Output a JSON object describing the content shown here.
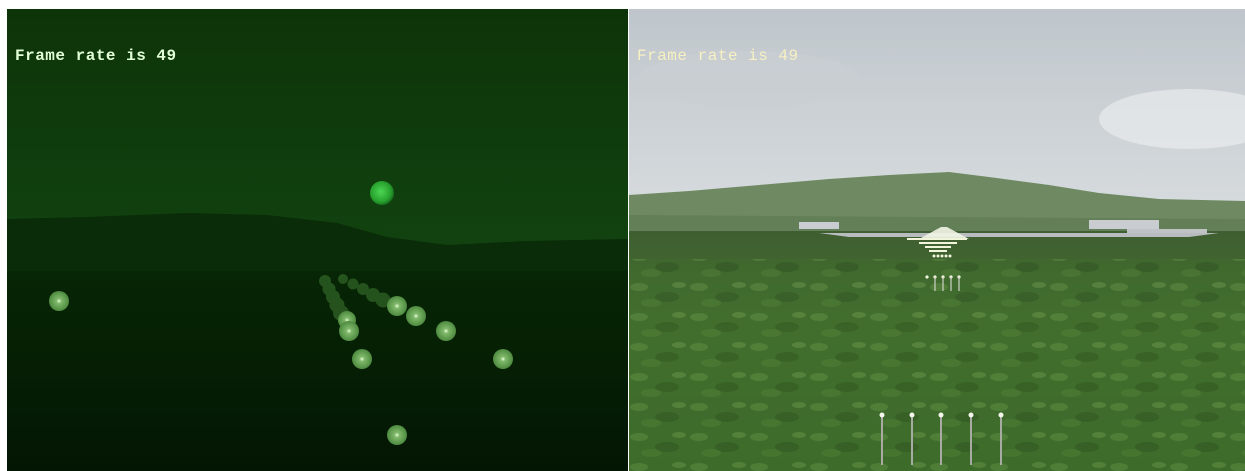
{
  "night_view": {
    "fps_text": "Frame rate is 49",
    "colors": {
      "sky": "#0f3a0c",
      "ground": "#041a03",
      "moon": "#2fa836",
      "light": "#6fa85e"
    }
  },
  "day_view": {
    "fps_text": "Frame rate is 49",
    "colors": {
      "sky": "#d6dadd",
      "hills": "#6e8a62",
      "ground": "#3f6a2c",
      "runway_light": "#f1f5dc"
    }
  }
}
